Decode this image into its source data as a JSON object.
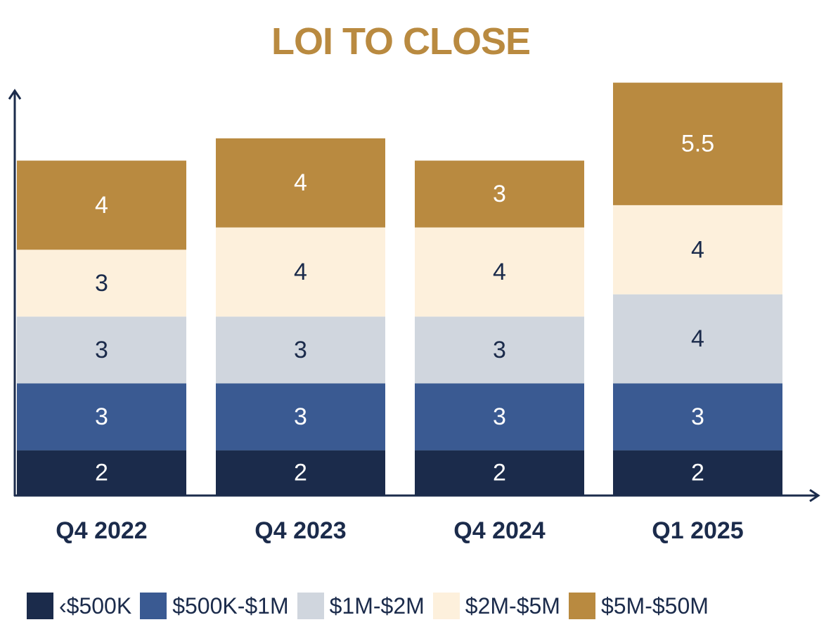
{
  "chart_data": {
    "type": "bar",
    "stacked": true,
    "title": "LOI TO CLOSE",
    "categories": [
      "Q4 2022",
      "Q4 2023",
      "Q4 2024",
      "Q1 2025"
    ],
    "series": [
      {
        "name": "‹$500K",
        "values": [
          2,
          2,
          2,
          2
        ]
      },
      {
        "name": "$500K-$1M",
        "values": [
          3,
          3,
          3,
          3
        ]
      },
      {
        "name": "$1M-$2M",
        "values": [
          3,
          3,
          3,
          4
        ]
      },
      {
        "name": "$2M-$5M",
        "values": [
          3,
          4,
          4,
          4
        ]
      },
      {
        "name": "$5M-$50M",
        "values": [
          4,
          4,
          3,
          5.5
        ]
      }
    ],
    "xlabel": "",
    "ylabel": "",
    "ylim": [
      0,
      18.4
    ],
    "grid": false,
    "legend_position": "bottom"
  },
  "colors": {
    "title": "#b98a40",
    "axis": "#1b2b4b",
    "category_label": "#1b2b4b",
    "series": [
      "#1b2b4b",
      "#3a5a92",
      "#d0d6de",
      "#fdf0dc",
      "#b98a40"
    ],
    "series_label": [
      "#ffffff",
      "#ffffff",
      "#1b2b4b",
      "#1b2b4b",
      "#ffffff"
    ]
  }
}
